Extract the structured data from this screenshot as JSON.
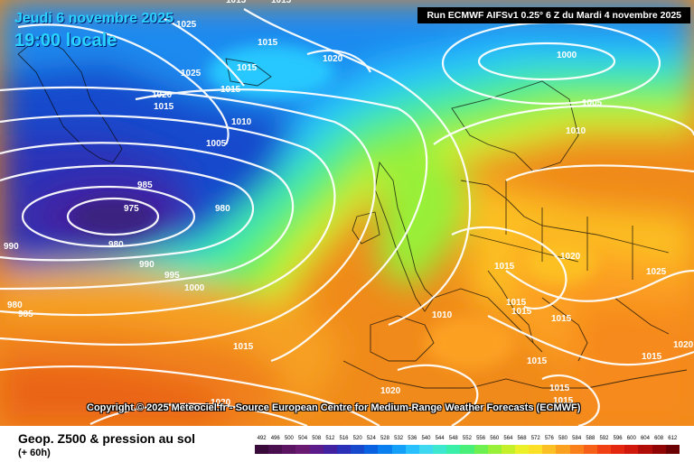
{
  "header": {
    "date": "Jeudi 6 novembre 2025",
    "time": "19:00 locale",
    "run_info": "Run ECMWF AIFSv1 0.25° 6 Z du Mardi 4 novembre 2025"
  },
  "copyright": "Copyright © 2025 Meteociel.fr - Source European Centre for Medium-Range Weather Forecasts (ECMWF)",
  "footer": {
    "parameter": "Geop. Z500 & pression au sol",
    "lead_time": "(+ 60h)"
  },
  "scale": {
    "labels": [
      "492",
      "496",
      "500",
      "504",
      "508",
      "512",
      "516",
      "520",
      "524",
      "528",
      "532",
      "536",
      "540",
      "544",
      "548",
      "552",
      "556",
      "560",
      "564",
      "568",
      "572",
      "576",
      "580",
      "584",
      "588",
      "592",
      "596",
      "600",
      "604",
      "608",
      "612"
    ],
    "colors": [
      "#3a0a3a",
      "#4a0f4f",
      "#5a1461",
      "#6a1a70",
      "#5c1b8a",
      "#4222a0",
      "#2a30b8",
      "#1848cc",
      "#0a62e0",
      "#0a80f0",
      "#14a0f8",
      "#28c0ff",
      "#3ed8f0",
      "#3ee8d0",
      "#3af0a8",
      "#48f07a",
      "#6ef050",
      "#98f038",
      "#c4f02a",
      "#ecf028",
      "#fce028",
      "#fcc024",
      "#fca020",
      "#fa801c",
      "#f66018",
      "#f04014",
      "#e42810",
      "#d0180c",
      "#b00c08",
      "#900404",
      "#6a0000"
    ]
  },
  "pressure_labels": [
    "1015",
    "1015",
    "1025",
    "1015",
    "1025",
    "1015",
    "1020",
    "1015",
    "1010",
    "1015",
    "1005",
    "985",
    "975",
    "980",
    "980",
    "990",
    "995",
    "1000",
    "980",
    "985",
    "990",
    "1020",
    "1000",
    "1005",
    "1010",
    "1015",
    "1020",
    "1015",
    "1025",
    "1015",
    "1015",
    "1015",
    "1015",
    "1015",
    "1015",
    "1010",
    "1015",
    "1020",
    "1020",
    "1020"
  ]
}
